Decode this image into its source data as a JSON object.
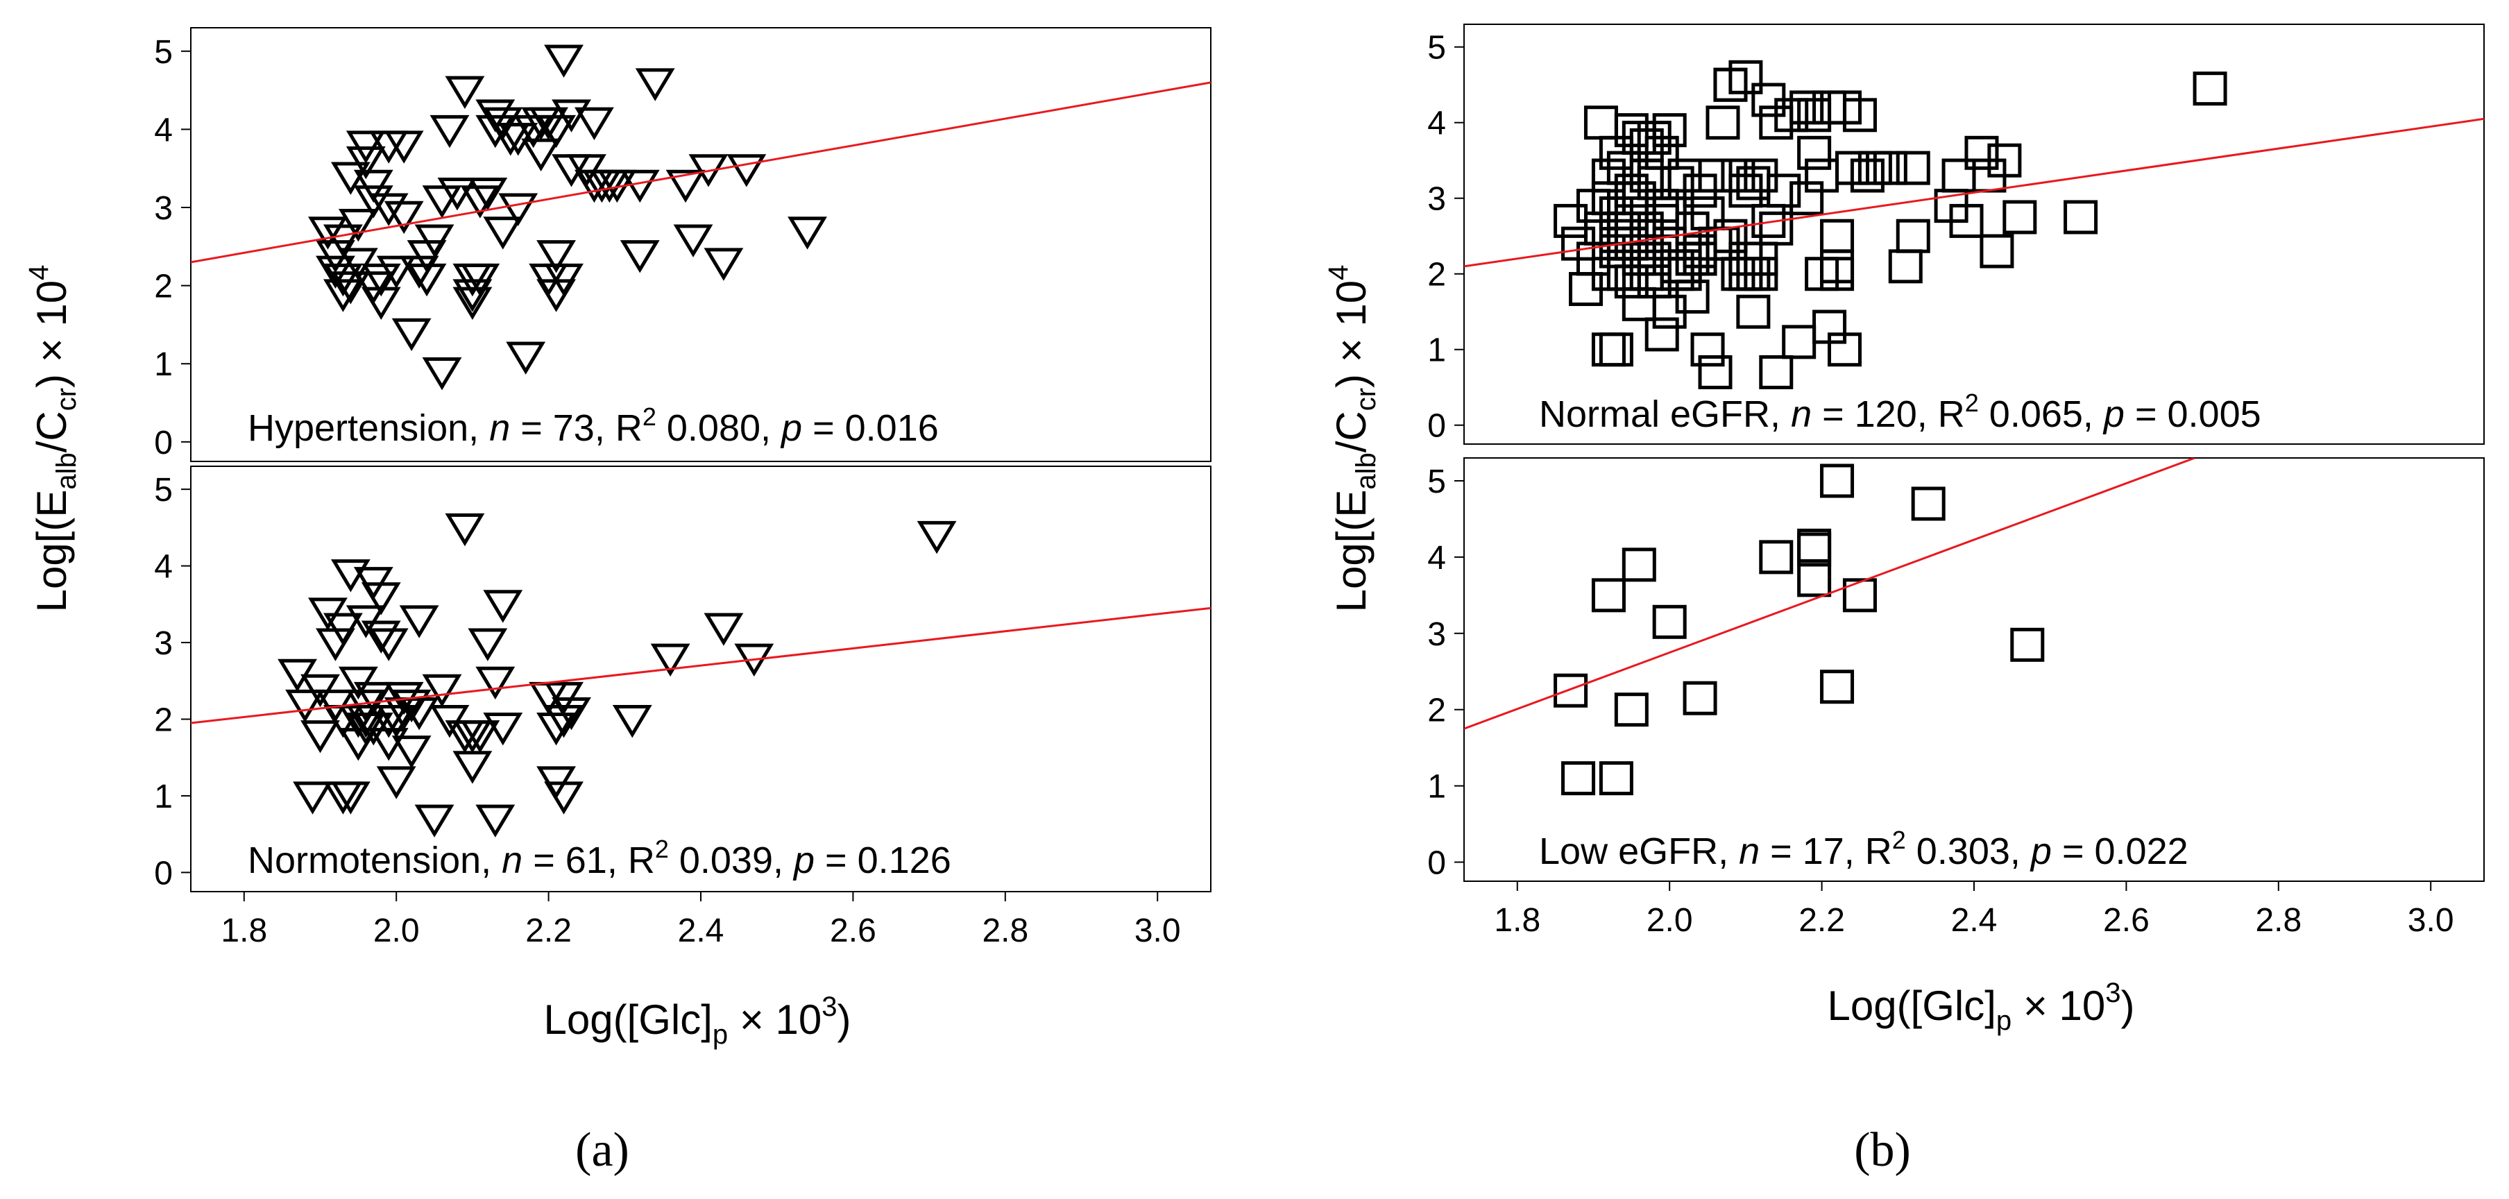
{
  "figure": {
    "left_caption": "(a)",
    "right_caption": "(b)"
  },
  "axes_text": {
    "left_ylabel": {
      "pre": "Log[(E",
      "sub1": "alb",
      "mid": "/C",
      "sub2": "cr",
      "post": ") × 10",
      "sup": "4"
    },
    "right_ylabel": {
      "pre": "Log[(E",
      "sub1": "alb",
      "mid": "/C",
      "sub2": "cr",
      "post": ") × 10",
      "sup": "4"
    },
    "left_xlabel": {
      "pre": "Log([Glc]",
      "sub": "p",
      "post": " × 10",
      "sup": "3",
      "end": ")"
    },
    "right_xlabel": {
      "pre": "Log([Glc]",
      "sub": "p",
      "post": " × 10",
      "sup": "3",
      "end": ")"
    }
  },
  "chart_data": [
    {
      "type": "scatter",
      "panel": "a-top",
      "marker": "triangle-down",
      "title": "",
      "annotation": {
        "label": "Hypertension",
        "n": "73",
        "r2": "0.080",
        "p": "0.016"
      },
      "xlim": [
        1.73,
        3.07
      ],
      "ylim": [
        -0.25,
        5.3
      ],
      "xticks": [],
      "yticks": [
        "0",
        "1",
        "2",
        "3",
        "4",
        "5"
      ],
      "fit": {
        "x": [
          1.73,
          3.07
        ],
        "y": [
          2.3,
          4.6
        ]
      },
      "line_color": "#e8191f",
      "x": [
        1.91,
        1.92,
        1.92,
        1.93,
        1.93,
        1.93,
        1.94,
        1.94,
        1.95,
        1.95,
        1.96,
        1.96,
        1.97,
        1.97,
        1.97,
        1.98,
        1.98,
        1.99,
        1.99,
        2.0,
        2.01,
        2.01,
        2.02,
        2.03,
        2.04,
        2.04,
        2.05,
        2.06,
        2.06,
        2.07,
        2.08,
        2.09,
        2.1,
        2.1,
        2.1,
        2.11,
        2.11,
        2.12,
        2.13,
        2.14,
        2.14,
        2.15,
        2.16,
        2.17,
        2.18,
        2.19,
        2.19,
        2.2,
        2.2,
        2.21,
        2.21,
        2.22,
        2.22,
        2.23,
        2.23,
        2.25,
        2.26,
        2.26,
        2.27,
        2.28,
        2.29,
        2.32,
        2.32,
        2.34,
        2.38,
        2.39,
        2.41,
        2.43,
        2.46,
        2.54,
        2.21,
        2.13,
        2.16
      ],
      "y": [
        2.7,
        2.4,
        2.2,
        2.6,
        2.1,
        1.9,
        2.0,
        3.4,
        2.3,
        2.8,
        3.8,
        3.6,
        3.3,
        3.1,
        2.0,
        2.1,
        1.8,
        3.8,
        3.0,
        2.2,
        3.8,
        2.9,
        1.4,
        2.2,
        2.4,
        2.1,
        2.6,
        0.9,
        3.1,
        4.0,
        3.2,
        4.5,
        2.1,
        1.9,
        1.8,
        2.1,
        3.1,
        3.2,
        4.2,
        4.1,
        2.7,
        3.9,
        3.0,
        1.1,
        4.0,
        4.1,
        3.7,
        2.1,
        4.1,
        2.4,
        1.9,
        2.1,
        4.9,
        4.2,
        3.5,
        3.5,
        3.3,
        4.1,
        3.3,
        3.3,
        3.3,
        2.4,
        3.3,
        4.6,
        3.3,
        2.6,
        3.5,
        2.3,
        3.5,
        2.7,
        4.0,
        4.0,
        3.9
      ]
    },
    {
      "type": "scatter",
      "panel": "a-bottom",
      "marker": "triangle-down",
      "title": "",
      "annotation": {
        "label": "Normotension",
        "n": "61",
        "r2": "0.039",
        "p": "0.126"
      },
      "xlim": [
        1.73,
        3.07
      ],
      "ylim": [
        -0.25,
        5.3
      ],
      "xticks": [
        "1.8",
        "2.0",
        "2.2",
        "2.4",
        "2.6",
        "2.8",
        "3.0"
      ],
      "yticks": [
        "0",
        "1",
        "2",
        "3",
        "4",
        "5"
      ],
      "fit": {
        "x": [
          1.73,
          3.07
        ],
        "y": [
          1.95,
          3.45
        ]
      },
      "line_color": "#e8191f",
      "x": [
        1.87,
        1.88,
        1.89,
        1.9,
        1.9,
        1.91,
        1.92,
        1.92,
        1.93,
        1.93,
        1.94,
        1.94,
        1.95,
        1.95,
        1.95,
        1.96,
        1.96,
        1.96,
        1.97,
        1.97,
        1.97,
        1.98,
        1.98,
        1.99,
        1.99,
        2.0,
        2.0,
        2.01,
        2.01,
        2.02,
        2.03,
        2.03,
        2.05,
        2.06,
        2.07,
        2.09,
        2.09,
        2.1,
        2.1,
        2.11,
        2.12,
        2.13,
        2.13,
        2.14,
        2.14,
        2.2,
        2.21,
        2.21,
        2.22,
        2.22,
        2.22,
        2.23,
        2.31,
        2.36,
        2.43,
        2.47,
        2.71,
        1.93,
        1.96,
        1.99,
        2.02
      ],
      "y": [
        2.6,
        2.2,
        1.0,
        2.4,
        1.8,
        3.4,
        3.0,
        2.2,
        1.0,
        3.2,
        1.0,
        3.9,
        2.5,
        2.0,
        1.7,
        3.3,
        2.2,
        1.9,
        3.8,
        2.3,
        1.9,
        3.6,
        3.1,
        3.0,
        1.7,
        1.2,
        2.0,
        2.3,
        2.1,
        1.6,
        3.3,
        2.1,
        0.7,
        2.4,
        2.0,
        4.5,
        1.8,
        1.4,
        1.8,
        1.8,
        3.0,
        0.7,
        2.5,
        1.9,
        3.5,
        2.3,
        1.2,
        1.9,
        1.0,
        2.3,
        2.0,
        2.1,
        2.0,
        2.8,
        3.2,
        2.8,
        4.4,
        2.0,
        2.0,
        2.0,
        2.2
      ]
    },
    {
      "type": "scatter",
      "panel": "b-top",
      "marker": "square",
      "title": "",
      "annotation": {
        "label": "Normal eGFR",
        "n": "120",
        "r2": "0.065",
        "p": "0.005"
      },
      "xlim": [
        1.73,
        3.07
      ],
      "ylim": [
        -0.25,
        5.3
      ],
      "xticks": [],
      "yticks": [
        "0",
        "1",
        "2",
        "3",
        "4",
        "5"
      ],
      "fit": {
        "x": [
          1.73,
          3.07
        ],
        "y": [
          2.1,
          4.05
        ]
      },
      "line_color": "#e8191f",
      "x": [
        1.87,
        1.88,
        1.89,
        1.9,
        1.9,
        1.91,
        1.91,
        1.92,
        1.92,
        1.92,
        1.93,
        1.93,
        1.93,
        1.93,
        1.94,
        1.94,
        1.94,
        1.95,
        1.95,
        1.95,
        1.95,
        1.96,
        1.96,
        1.96,
        1.96,
        1.97,
        1.97,
        1.97,
        1.97,
        1.98,
        1.98,
        1.98,
        1.98,
        1.99,
        1.99,
        1.99,
        2.0,
        2.0,
        2.0,
        2.01,
        2.01,
        2.02,
        2.02,
        2.03,
        2.03,
        2.04,
        2.04,
        2.05,
        2.05,
        2.06,
        2.06,
        2.07,
        2.07,
        2.08,
        2.08,
        2.09,
        2.09,
        2.1,
        2.1,
        2.1,
        2.11,
        2.11,
        2.11,
        2.12,
        2.12,
        2.13,
        2.13,
        2.14,
        2.14,
        2.15,
        2.16,
        2.17,
        2.18,
        2.19,
        2.19,
        2.2,
        2.2,
        2.21,
        2.21,
        2.22,
        2.22,
        2.22,
        2.23,
        2.23,
        2.24,
        2.25,
        2.26,
        2.27,
        2.29,
        2.31,
        2.32,
        2.32,
        2.37,
        2.38,
        2.39,
        2.41,
        2.42,
        2.43,
        2.44,
        2.46,
        2.54,
        2.71,
        1.93,
        1.97,
        2.0,
        2.04,
        2.08,
        1.95,
        1.99,
        2.03,
        2.06,
        2.14,
        1.92,
        1.96,
        2.01,
        2.12,
        2.18,
        1.94,
        2.02,
        2.1
      ],
      "y": [
        2.7,
        2.4,
        1.8,
        2.9,
        2.2,
        4.0,
        2.6,
        3.3,
        2.0,
        1.0,
        3.6,
        2.8,
        2.3,
        1.0,
        3.4,
        2.6,
        2.0,
        3.9,
        3.1,
        2.4,
        1.9,
        3.8,
        3.0,
        2.2,
        1.6,
        3.7,
        3.3,
        2.5,
        2.0,
        3.8,
        3.2,
        2.2,
        1.9,
        3.6,
        2.9,
        1.2,
        3.9,
        2.4,
        1.5,
        3.2,
        2.1,
        3.3,
        2.0,
        2.6,
        1.7,
        3.1,
        2.2,
        2.8,
        1.0,
        3.3,
        0.7,
        4.0,
        2.4,
        4.5,
        4.5,
        3.3,
        2.0,
        4.6,
        3.1,
        2.0,
        3.2,
        2.0,
        1.5,
        3.3,
        2.0,
        4.3,
        2.7,
        4.0,
        0.7,
        3.1,
        4.1,
        1.1,
        4.2,
        3.6,
        4.1,
        2.0,
        3.3,
        4.2,
        1.3,
        2.5,
        2.0,
        2.1,
        1.0,
        4.2,
        3.4,
        4.1,
        3.3,
        3.4,
        3.4,
        2.1,
        2.5,
        3.4,
        2.9,
        3.3,
        2.7,
        3.6,
        3.3,
        2.3,
        3.5,
        2.75,
        2.75,
        4.45,
        2.5,
        2.6,
        2.8,
        2.3,
        2.5,
        2.8,
        2.7,
        2.2,
        2.4,
        2.6,
        3.0,
        2.3,
        2.0,
        2.2,
        3.0,
        2.4,
        2.1,
        2.2
      ]
    },
    {
      "type": "scatter",
      "panel": "b-bottom",
      "marker": "square",
      "title": "",
      "annotation": {
        "label": "Low eGFR",
        "n": "17",
        "r2": "0.303",
        "p": "0.022"
      },
      "xlim": [
        1.73,
        3.07
      ],
      "ylim": [
        -0.25,
        5.3
      ],
      "xticks": [
        "1.8",
        "2.0",
        "2.2",
        "2.4",
        "2.6",
        "2.8",
        "3.0"
      ],
      "yticks": [
        "0",
        "1",
        "2",
        "3",
        "4",
        "5"
      ],
      "fit": {
        "x": [
          1.73,
          2.69
        ],
        "y": [
          1.75,
          5.3
        ]
      },
      "line_color": "#e8191f",
      "x": [
        1.87,
        1.88,
        1.92,
        1.93,
        1.95,
        1.96,
        2.0,
        2.04,
        2.14,
        2.19,
        2.19,
        2.19,
        2.22,
        2.22,
        2.25,
        2.34,
        2.47
      ],
      "y": [
        2.25,
        1.1,
        3.5,
        1.1,
        2.0,
        3.9,
        3.15,
        2.15,
        4.0,
        4.1,
        4.15,
        3.7,
        5.0,
        2.3,
        3.5,
        4.7,
        2.85
      ]
    }
  ]
}
